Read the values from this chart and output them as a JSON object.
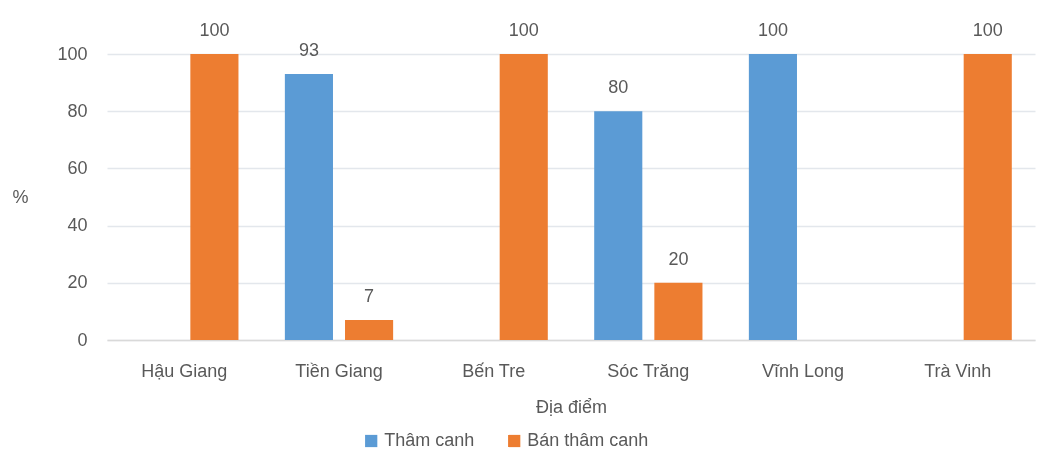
{
  "chart_data": {
    "type": "bar",
    "categories": [
      "Hậu Giang",
      "Tiền Giang",
      "Bến Tre",
      "Sóc Trăng",
      "Vĩnh Long",
      "Trà Vinh"
    ],
    "series": [
      {
        "name": "Thâm canh",
        "color": "#5b9bd5",
        "values": [
          null,
          93,
          null,
          80,
          100,
          null
        ]
      },
      {
        "name": "Bán thâm canh",
        "color": "#ed7d31",
        "values": [
          100,
          7,
          100,
          20,
          null,
          100
        ]
      }
    ],
    "xlabel": "Địa điểm",
    "ylabel": "%",
    "ylim": [
      0,
      100
    ],
    "yticks": [
      0,
      20,
      40,
      60,
      80,
      100
    ],
    "grid": "y",
    "legend": "bottom",
    "data_labels": true
  }
}
